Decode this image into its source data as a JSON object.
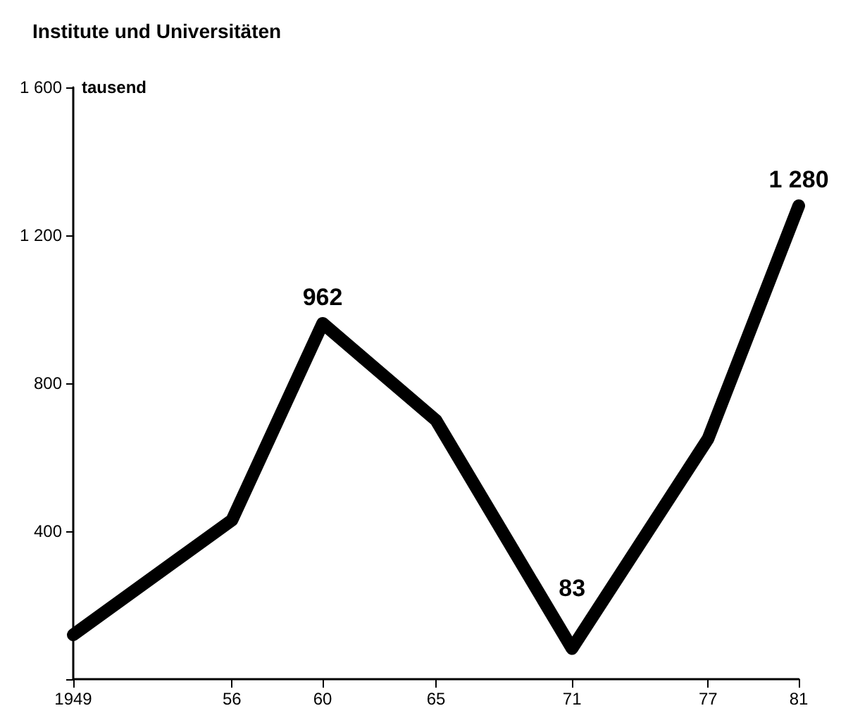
{
  "chart_data": {
    "type": "line",
    "title": "Institute und Universitäten",
    "ylabel": "tausend",
    "x": [
      1949,
      1956,
      1960,
      1965,
      1971,
      1977,
      1981
    ],
    "series": [
      {
        "color": "#000000",
        "values": [
          120,
          430,
          962,
          700,
          83,
          650,
          1280
        ],
        "value_labels": [
          null,
          null,
          "962",
          null,
          "83",
          null,
          "1 280"
        ]
      }
    ],
    "xlim": [
      1949,
      1981
    ],
    "xticks": [
      1949,
      {
        "value": 1956,
        "label": "56"
      },
      {
        "value": 1960,
        "label": "60"
      },
      {
        "value": 1965,
        "label": "65"
      },
      {
        "value": 1971,
        "label": "71"
      },
      {
        "value": 1977,
        "label": "77"
      },
      {
        "value": 1981,
        "label": "81"
      }
    ],
    "ylim": [
      0,
      1600
    ],
    "yticks": [
      {
        "value": 0,
        "label": null
      },
      400,
      800,
      {
        "value": 1200,
        "label": "1 200"
      },
      {
        "value": 1600,
        "label": "1 600"
      }
    ],
    "grid": false,
    "marker": "none",
    "line_style": "solid"
  }
}
